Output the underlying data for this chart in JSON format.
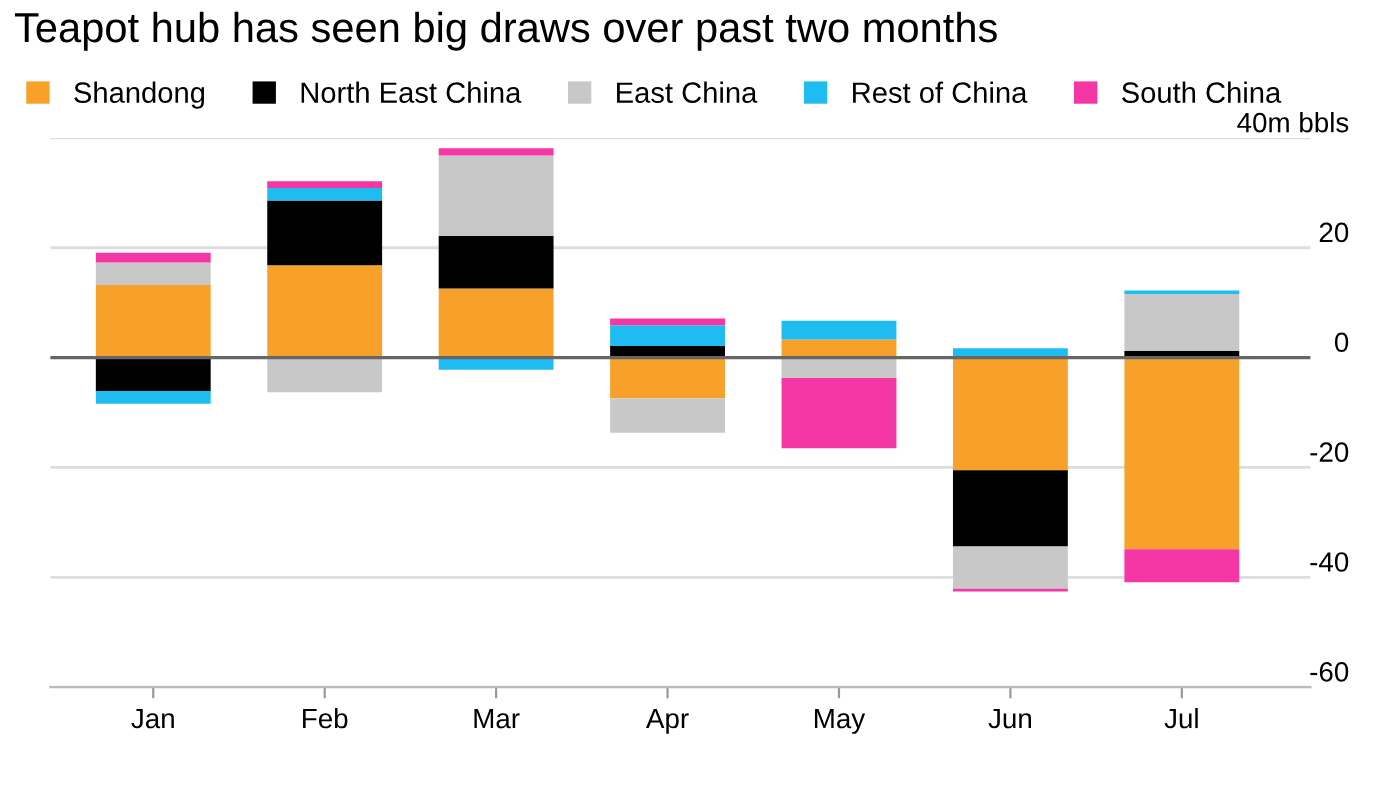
{
  "chart_data": {
    "type": "bar",
    "stacked": true,
    "title": "Teapot hub has seen big draws over past two months",
    "categories": [
      "Jan",
      "Feb",
      "Mar",
      "Apr",
      "May",
      "Jun",
      "Jul"
    ],
    "series": [
      {
        "name": "Shandong",
        "color": "#f7a12b",
        "values": [
          13.2,
          16.8,
          12.6,
          -7.4,
          3.3,
          -20.5,
          -34.9
        ]
      },
      {
        "name": "North East China",
        "color": "#000000",
        "values": [
          -6.1,
          11.8,
          9.6,
          2.1,
          0,
          -13.9,
          1.2
        ]
      },
      {
        "name": "East China",
        "color": "#c8c8c8",
        "values": [
          4.1,
          -6.3,
          14.6,
          -6.3,
          -3.7,
          -7.7,
          10.4
        ]
      },
      {
        "name": "Rest of China",
        "color": "#1fbcf2",
        "values": [
          -2.3,
          2.3,
          -2.2,
          3.8,
          3.4,
          1.7,
          0.6
        ]
      },
      {
        "name": "South China",
        "color": "#f536a5",
        "values": [
          1.8,
          1.2,
          1.3,
          1.2,
          -12.8,
          -0.5,
          -6.0
        ]
      }
    ],
    "ylim": [
      -60,
      40
    ],
    "yticks": [
      {
        "value": 40,
        "label": "40m bbls"
      },
      20,
      0,
      -20,
      -40,
      -60
    ],
    "ref_lines": [
      {
        "axis": "y",
        "value": 0,
        "color": "#666666"
      }
    ],
    "grid": "y",
    "legend": "top left"
  }
}
